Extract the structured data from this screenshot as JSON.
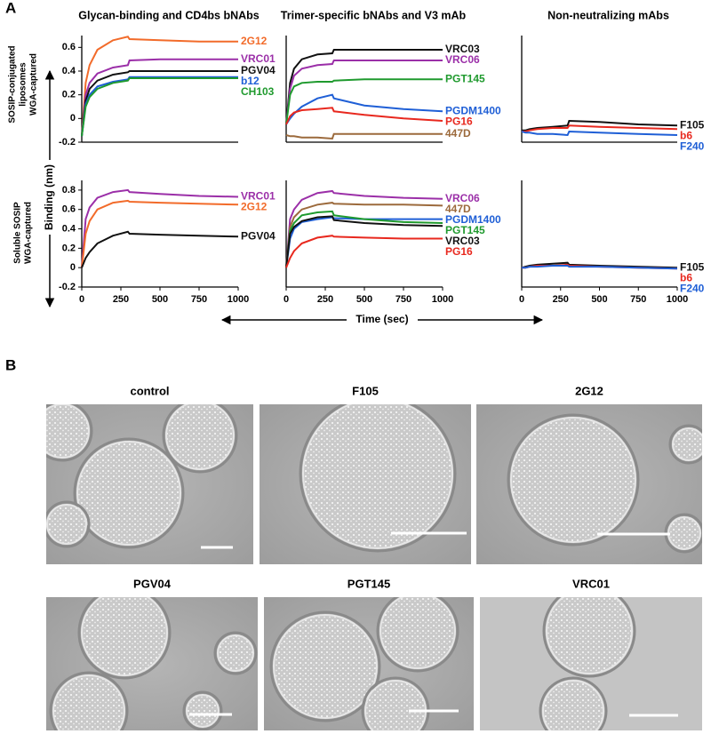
{
  "panel_labels": [
    "A",
    "B"
  ],
  "row_labels": [
    [
      "SOSIP-conjugated",
      "liposomes",
      "WGA-captured"
    ],
    [
      "Soluble SOSIP",
      "WGA-captured"
    ]
  ],
  "y_axis_label": "Binding (nm)",
  "x_axis_label": "Time (sec)",
  "chart_data": [
    {
      "type": "line",
      "title": "Glycan-binding and CD4bs bNAbs",
      "x": [
        0,
        25,
        50,
        100,
        200,
        295,
        305,
        500,
        750,
        1000
      ],
      "xlim": [
        0,
        1000
      ],
      "ylim": [
        -0.2,
        0.7
      ],
      "yticks": [
        -0.2,
        0,
        0.2,
        0.4,
        0.6
      ],
      "grid": false,
      "series": [
        {
          "name": "2G12",
          "color": "#f26b2a",
          "values": [
            -0.15,
            0.3,
            0.45,
            0.58,
            0.66,
            0.69,
            0.67,
            0.66,
            0.65,
            0.65
          ]
        },
        {
          "name": "VRC01",
          "color": "#9b2fa8",
          "values": [
            -0.15,
            0.2,
            0.3,
            0.38,
            0.43,
            0.45,
            0.49,
            0.5,
            0.5,
            0.5
          ]
        },
        {
          "name": "PGV04",
          "color": "#111111",
          "values": [
            -0.15,
            0.15,
            0.25,
            0.32,
            0.37,
            0.39,
            0.4,
            0.4,
            0.4,
            0.4
          ]
        },
        {
          "name": "b12",
          "color": "#1f5fd6",
          "values": [
            -0.15,
            0.12,
            0.2,
            0.27,
            0.31,
            0.33,
            0.35,
            0.35,
            0.35,
            0.35
          ]
        },
        {
          "name": "CH103",
          "color": "#1f9a2e",
          "values": [
            -0.15,
            0.1,
            0.18,
            0.25,
            0.3,
            0.32,
            0.34,
            0.34,
            0.34,
            0.34
          ]
        }
      ]
    },
    {
      "type": "line",
      "title": "Trimer-specific bNAbs and V3 mAb",
      "x": [
        0,
        25,
        50,
        100,
        200,
        295,
        305,
        500,
        750,
        1000
      ],
      "xlim": [
        0,
        1000
      ],
      "ylim": [
        -0.2,
        0.7
      ],
      "grid": false,
      "series": [
        {
          "name": "VRC03",
          "color": "#111111",
          "values": [
            -0.05,
            0.3,
            0.42,
            0.5,
            0.54,
            0.55,
            0.58,
            0.58,
            0.58,
            0.58
          ]
        },
        {
          "name": "VRC06",
          "color": "#9b2fa8",
          "values": [
            -0.05,
            0.25,
            0.36,
            0.42,
            0.45,
            0.46,
            0.49,
            0.49,
            0.49,
            0.49
          ]
        },
        {
          "name": "PGT145",
          "color": "#1f9a2e",
          "values": [
            -0.05,
            0.2,
            0.27,
            0.3,
            0.31,
            0.31,
            0.32,
            0.33,
            0.33,
            0.33
          ]
        },
        {
          "name": "PGDM1400",
          "color": "#1f5fd6",
          "values": [
            -0.05,
            0.0,
            0.04,
            0.1,
            0.17,
            0.2,
            0.17,
            0.11,
            0.08,
            0.06
          ]
        },
        {
          "name": "PG16",
          "color": "#e8281e",
          "values": [
            -0.05,
            0.02,
            0.05,
            0.07,
            0.08,
            0.09,
            0.06,
            0.03,
            0.0,
            -0.02
          ]
        },
        {
          "name": "447D",
          "color": "#9c6a3c",
          "values": [
            -0.14,
            -0.15,
            -0.15,
            -0.16,
            -0.16,
            -0.17,
            -0.13,
            -0.13,
            -0.13,
            -0.13
          ]
        }
      ]
    },
    {
      "type": "line",
      "title": "Non-neutralizing mAbs",
      "x": [
        0,
        25,
        50,
        100,
        200,
        295,
        305,
        500,
        750,
        1000
      ],
      "xlim": [
        0,
        1000
      ],
      "ylim": [
        -0.2,
        0.7
      ],
      "grid": false,
      "series": [
        {
          "name": "F105",
          "color": "#111111",
          "values": [
            -0.1,
            -0.1,
            -0.09,
            -0.08,
            -0.07,
            -0.06,
            -0.02,
            -0.03,
            -0.05,
            -0.06
          ]
        },
        {
          "name": "b6",
          "color": "#e8281e",
          "values": [
            -0.11,
            -0.11,
            -0.1,
            -0.09,
            -0.08,
            -0.08,
            -0.06,
            -0.07,
            -0.08,
            -0.09
          ]
        },
        {
          "name": "F240",
          "color": "#1f5fd6",
          "values": [
            -0.11,
            -0.12,
            -0.12,
            -0.13,
            -0.13,
            -0.14,
            -0.11,
            -0.12,
            -0.13,
            -0.14
          ]
        }
      ]
    },
    {
      "type": "line",
      "x": [
        0,
        25,
        50,
        100,
        200,
        295,
        305,
        500,
        750,
        1000
      ],
      "xlim": [
        0,
        1000
      ],
      "ylim": [
        -0.2,
        0.9
      ],
      "xticks": [
        0,
        250,
        500,
        750,
        1000
      ],
      "yticks": [
        -0.2,
        0,
        0.2,
        0.4,
        0.6,
        0.8
      ],
      "grid": false,
      "series": [
        {
          "name": "VRC01",
          "color": "#9b2fa8",
          "values": [
            0,
            0.5,
            0.62,
            0.72,
            0.78,
            0.8,
            0.78,
            0.76,
            0.74,
            0.73
          ]
        },
        {
          "name": "2G12",
          "color": "#f26b2a",
          "values": [
            0,
            0.35,
            0.48,
            0.6,
            0.67,
            0.69,
            0.68,
            0.67,
            0.66,
            0.65
          ]
        },
        {
          "name": "PGV04",
          "color": "#111111",
          "values": [
            0,
            0.1,
            0.16,
            0.25,
            0.33,
            0.37,
            0.35,
            0.34,
            0.33,
            0.32
          ]
        }
      ]
    },
    {
      "type": "line",
      "x": [
        0,
        25,
        50,
        100,
        200,
        295,
        305,
        500,
        750,
        1000
      ],
      "xlim": [
        0,
        1000
      ],
      "ylim": [
        -0.2,
        0.9
      ],
      "xticks": [
        0,
        250,
        500,
        750,
        1000
      ],
      "grid": false,
      "series": [
        {
          "name": "VRC06",
          "color": "#9b2fa8",
          "values": [
            0,
            0.5,
            0.6,
            0.7,
            0.77,
            0.79,
            0.77,
            0.74,
            0.72,
            0.71
          ]
        },
        {
          "name": "447D",
          "color": "#9c6a3c",
          "values": [
            0,
            0.42,
            0.52,
            0.6,
            0.65,
            0.67,
            0.66,
            0.65,
            0.65,
            0.64
          ]
        },
        {
          "name": "PGDM1400",
          "color": "#1f5fd6",
          "values": [
            0,
            0.3,
            0.4,
            0.47,
            0.5,
            0.52,
            0.51,
            0.5,
            0.5,
            0.5
          ]
        },
        {
          "name": "PGT145",
          "color": "#1f9a2e",
          "values": [
            0,
            0.38,
            0.46,
            0.54,
            0.57,
            0.58,
            0.54,
            0.5,
            0.47,
            0.46
          ]
        },
        {
          "name": "VRC03",
          "color": "#111111",
          "values": [
            0,
            0.35,
            0.42,
            0.48,
            0.52,
            0.53,
            0.49,
            0.46,
            0.44,
            0.43
          ]
        },
        {
          "name": "PG16",
          "color": "#e8281e",
          "values": [
            0,
            0.1,
            0.17,
            0.25,
            0.31,
            0.33,
            0.32,
            0.31,
            0.3,
            0.3
          ]
        }
      ]
    },
    {
      "type": "line",
      "x": [
        0,
        25,
        50,
        100,
        200,
        295,
        305,
        500,
        750,
        1000
      ],
      "xlim": [
        0,
        1000
      ],
      "ylim": [
        -0.2,
        0.9
      ],
      "xticks": [
        0,
        250,
        500,
        750,
        1000
      ],
      "grid": false,
      "series": [
        {
          "name": "F105",
          "color": "#111111",
          "values": [
            0,
            0.01,
            0.02,
            0.03,
            0.04,
            0.05,
            0.03,
            0.02,
            0.01,
            0.0
          ]
        },
        {
          "name": "b6",
          "color": "#e8281e",
          "values": [
            0,
            0,
            0.01,
            0.02,
            0.02,
            0.03,
            0.02,
            0.01,
            0,
            -0.01
          ]
        },
        {
          "name": "F240",
          "color": "#1f5fd6",
          "values": [
            0,
            0,
            0.01,
            0.01,
            0.02,
            0.02,
            0.01,
            0.01,
            0,
            -0.01
          ]
        }
      ]
    }
  ],
  "micrographs": [
    {
      "title": "control"
    },
    {
      "title": "F105"
    },
    {
      "title": "2G12"
    },
    {
      "title": "PGV04"
    },
    {
      "title": "PGT145"
    },
    {
      "title": "VRC01"
    }
  ]
}
